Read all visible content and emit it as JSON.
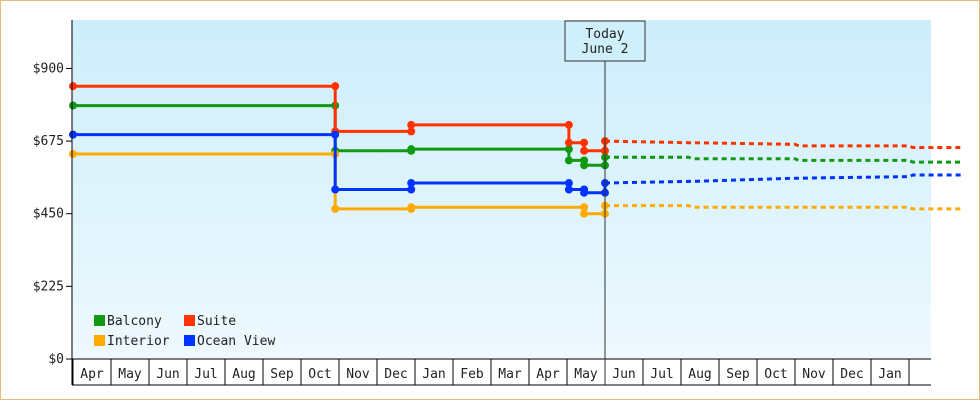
{
  "chart_data": {
    "type": "line",
    "subtype": "step",
    "y_ticks": [
      "$0",
      "$225",
      "$450",
      "$675",
      "$900"
    ],
    "y_tick_values": [
      0,
      225,
      450,
      675,
      900
    ],
    "ylim": [
      0,
      1050
    ],
    "months": [
      "Apr",
      "May",
      "Jun",
      "Jul",
      "Aug",
      "Sep",
      "Oct",
      "Nov",
      "Dec",
      "Jan",
      "Feb",
      "Mar",
      "Apr",
      "May",
      "Jun",
      "Jul",
      "Aug",
      "Sep",
      "Oct",
      "Nov",
      "Dec",
      "Jan"
    ],
    "today_label": [
      "Today",
      "June 2"
    ],
    "today_x": 14.0,
    "grid": false,
    "legend_placement": "bottom-left",
    "series": [
      {
        "name": "Balcony",
        "color": "#119911",
        "points": [
          [
            0,
            785
          ],
          [
            6.9,
            785
          ],
          [
            6.9,
            645
          ],
          [
            8.9,
            645
          ],
          [
            8.9,
            650
          ],
          [
            13.05,
            650
          ],
          [
            13.05,
            615
          ],
          [
            13.45,
            615
          ],
          [
            13.45,
            600
          ],
          [
            14.0,
            600
          ],
          [
            14.0,
            625
          ]
        ],
        "markers": [
          [
            0,
            785
          ],
          [
            6.9,
            785
          ],
          [
            6.9,
            645
          ],
          [
            8.9,
            645
          ],
          [
            8.9,
            650
          ],
          [
            13.05,
            650
          ],
          [
            13.05,
            615
          ],
          [
            13.45,
            615
          ],
          [
            13.45,
            600
          ],
          [
            14.0,
            600
          ],
          [
            14.0,
            625
          ]
        ],
        "forecast": [
          [
            14.0,
            625
          ],
          [
            16.2,
            625
          ],
          [
            16.3,
            620
          ],
          [
            19,
            620
          ],
          [
            19.1,
            615
          ],
          [
            22,
            615
          ],
          [
            22.1,
            610
          ],
          [
            23.4,
            610
          ]
        ]
      },
      {
        "name": "Suite",
        "color": "#ff3300",
        "points": [
          [
            0,
            845
          ],
          [
            6.9,
            845
          ],
          [
            6.9,
            705
          ],
          [
            8.9,
            705
          ],
          [
            8.9,
            725
          ],
          [
            13.05,
            725
          ],
          [
            13.05,
            670
          ],
          [
            13.45,
            670
          ],
          [
            13.45,
            645
          ],
          [
            14.0,
            645
          ],
          [
            14.0,
            675
          ]
        ],
        "markers": [
          [
            0,
            845
          ],
          [
            6.9,
            845
          ],
          [
            6.9,
            705
          ],
          [
            8.9,
            705
          ],
          [
            8.9,
            725
          ],
          [
            13.05,
            725
          ],
          [
            13.05,
            670
          ],
          [
            13.45,
            670
          ],
          [
            13.45,
            645
          ],
          [
            14.0,
            645
          ],
          [
            14.0,
            675
          ]
        ],
        "forecast": [
          [
            14.0,
            675
          ],
          [
            16.2,
            670
          ],
          [
            16.3,
            670
          ],
          [
            19,
            665
          ],
          [
            19.1,
            660
          ],
          [
            22,
            660
          ],
          [
            22.1,
            655
          ],
          [
            23.4,
            655
          ]
        ]
      },
      {
        "name": "Interior",
        "color": "#ffaa00",
        "points": [
          [
            0,
            635
          ],
          [
            6.9,
            635
          ],
          [
            6.9,
            465
          ],
          [
            8.9,
            465
          ],
          [
            8.9,
            470
          ],
          [
            13.45,
            470
          ],
          [
            13.45,
            450
          ],
          [
            14.0,
            450
          ],
          [
            14.0,
            475
          ]
        ],
        "markers": [
          [
            0,
            635
          ],
          [
            6.9,
            635
          ],
          [
            6.9,
            465
          ],
          [
            8.9,
            465
          ],
          [
            8.9,
            470
          ],
          [
            13.45,
            470
          ],
          [
            13.45,
            450
          ],
          [
            14.0,
            450
          ],
          [
            14.0,
            475
          ]
        ],
        "forecast": [
          [
            14.0,
            475
          ],
          [
            16.2,
            475
          ],
          [
            16.3,
            470
          ],
          [
            19,
            470
          ],
          [
            19.1,
            470
          ],
          [
            22,
            470
          ],
          [
            22.1,
            465
          ],
          [
            23.4,
            465
          ]
        ]
      },
      {
        "name": "Ocean View",
        "color": "#0033ff",
        "points": [
          [
            0,
            695
          ],
          [
            6.9,
            695
          ],
          [
            6.9,
            525
          ],
          [
            8.9,
            525
          ],
          [
            8.9,
            545
          ],
          [
            13.05,
            545
          ],
          [
            13.05,
            525
          ],
          [
            13.45,
            525
          ],
          [
            13.45,
            515
          ],
          [
            14.0,
            515
          ],
          [
            14.0,
            545
          ]
        ],
        "markers": [
          [
            0,
            695
          ],
          [
            6.9,
            695
          ],
          [
            6.9,
            525
          ],
          [
            8.9,
            525
          ],
          [
            8.9,
            545
          ],
          [
            13.05,
            545
          ],
          [
            13.05,
            525
          ],
          [
            13.45,
            525
          ],
          [
            13.45,
            515
          ],
          [
            14.0,
            515
          ],
          [
            14.0,
            545
          ]
        ],
        "forecast": [
          [
            14.0,
            545
          ],
          [
            16.2,
            550
          ],
          [
            16.3,
            550
          ],
          [
            19,
            560
          ],
          [
            19.1,
            560
          ],
          [
            22,
            565
          ],
          [
            22.1,
            570
          ],
          [
            23.4,
            570
          ]
        ]
      }
    ]
  }
}
